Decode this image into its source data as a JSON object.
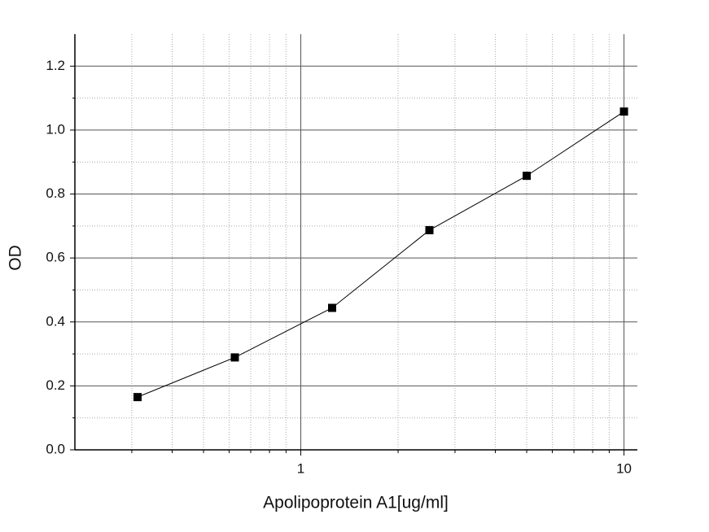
{
  "chart_data": {
    "type": "line",
    "x_label": "Apolipoprotein A1[ug/ml]",
    "y_label": "OD",
    "x": [
      0.3125,
      0.625,
      1.25,
      2.5,
      5,
      10
    ],
    "series": [
      {
        "color": "#000000",
        "values": [
          0.165,
          0.289,
          0.444,
          0.687,
          0.857,
          1.058
        ]
      }
    ],
    "xscale": "log",
    "xlim": [
      0.2,
      11
    ],
    "xticks": [
      1,
      10
    ],
    "xminor": [
      0.3,
      0.4,
      0.5,
      0.6,
      0.7,
      0.8,
      0.9,
      2,
      3,
      4,
      5,
      6,
      7,
      8,
      9
    ],
    "ylim": [
      0,
      1.3
    ],
    "yticks": [
      {
        "value": 0,
        "label": "0.0"
      },
      0.2,
      0.4,
      0.6,
      0.8,
      {
        "value": 1,
        "label": "1.0"
      },
      1.2
    ],
    "yminor": [
      0.1,
      0.3,
      0.5,
      0.7,
      0.9,
      1.1
    ],
    "grid": true
  }
}
